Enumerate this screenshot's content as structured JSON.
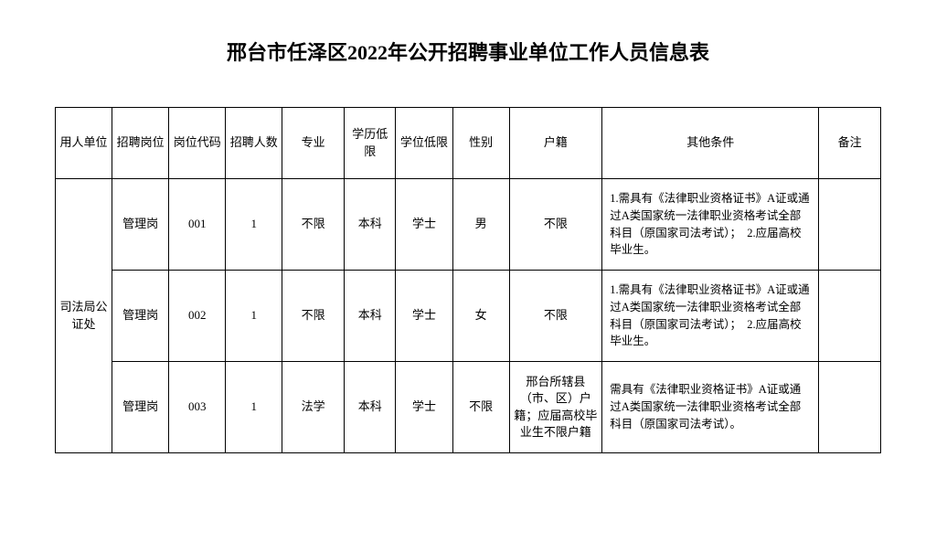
{
  "title": "邢台市任泽区2022年公开招聘事业单位工作人员信息表",
  "headers": {
    "employer": "用人单位",
    "position": "招聘岗位",
    "code": "岗位代码",
    "count": "招聘人数",
    "major": "专业",
    "edu": "学历低限",
    "degree": "学位低限",
    "gender": "性别",
    "hukou": "户籍",
    "other": "其他条件",
    "remark": "备注"
  },
  "employer_merged": "司法局公证处",
  "rows": [
    {
      "position": "管理岗",
      "code": "001",
      "count": "1",
      "major": "不限",
      "edu": "本科",
      "degree": "学士",
      "gender": "男",
      "hukou": "不限",
      "other": "1.需具有《法律职业资格证书》A证或通过A类国家统一法律职业资格考试全部科目（原国家司法考试）；　2.应届高校毕业生。",
      "remark": ""
    },
    {
      "position": "管理岗",
      "code": "002",
      "count": "1",
      "major": "不限",
      "edu": "本科",
      "degree": "学士",
      "gender": "女",
      "hukou": "不限",
      "other": "1.需具有《法律职业资格证书》A证或通过A类国家统一法律职业资格考试全部科目（原国家司法考试）；　2.应届高校毕业生。",
      "remark": ""
    },
    {
      "position": "管理岗",
      "code": "003",
      "count": "1",
      "major": "法学",
      "edu": "本科",
      "degree": "学士",
      "gender": "不限",
      "hukou": "邢台所辖县（市、区）户籍；应届高校毕业生不限户籍",
      "other": "需具有《法律职业资格证书》A证或通过A类国家统一法律职业资格考试全部科目（原国家司法考试）。",
      "remark": ""
    }
  ]
}
